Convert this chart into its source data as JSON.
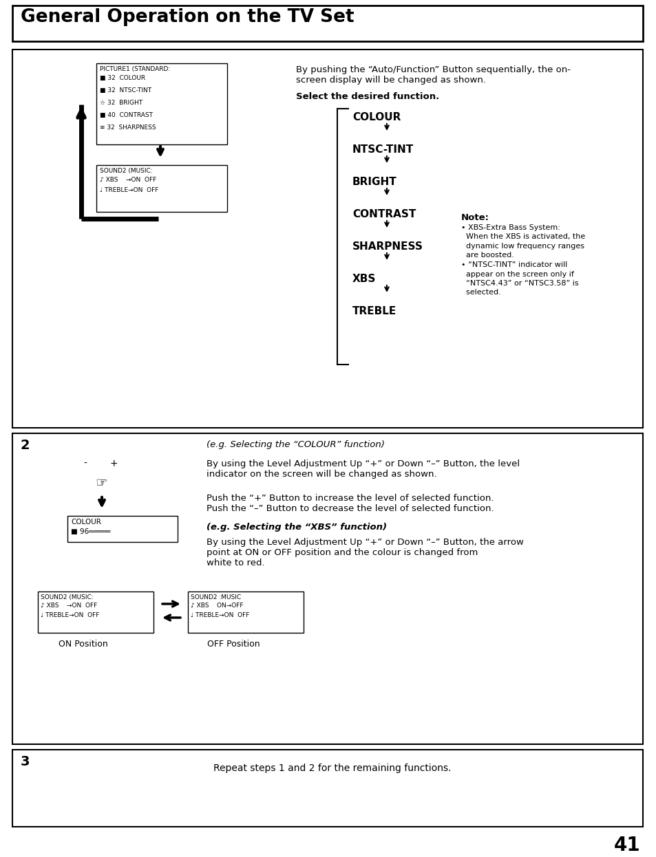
{
  "title": "General Operation on the TV Set",
  "page_number": "41",
  "section1_text1": "By pushing the “Auto/Function” Button sequentially, the on-\nscreen display will be changed as shown.",
  "section1_text2": "Select the desired function.",
  "flow_items": [
    "COLOUR",
    "NTSC-TINT",
    "BRIGHT",
    "CONTRAST",
    "SHARPNESS",
    "XBS",
    "TREBLE"
  ],
  "note_title": "Note:",
  "note_lines": [
    "• XBS-Extra Bass System:",
    "  When the XBS is activated, the",
    "  dynamic low frequency ranges",
    "  are boosted.",
    "• “NTSC-TINT” indicator will",
    "  appear on the screen only if",
    "  “NTSC4.43” or “NTSC3.58” is",
    "  selected."
  ],
  "picture_box_title": "PICTURE1 (STANDARD:",
  "picture_box_lines": [
    "■ 32  COLOUR",
    "■ 32  NTSC-TINT",
    "☆ 32  BRIGHT",
    "■ 40  CONTRAST",
    "≡ 32  SHARPNESS"
  ],
  "sound_box_title": "SOUND2 (MUSIC:",
  "sound_box_lines": [
    "♪ XBS    →ON  OFF",
    "♩ TREBLE→ON  OFF"
  ],
  "sound_box2_title": "SOUND2 :MUSIC",
  "sound_box2_lines": [
    "♪ XBS    ON→OFF",
    "♩ TREBLE→ON  OFF"
  ],
  "section2_text1": "(e.g. Selecting the “COLOUR” function)",
  "section2_text2": "By using the Level Adjustment Up “+” or Down “–” Button, the level\nindicator on the screen will be changed as shown.",
  "section2_text3": "Push the “+” Button to increase the level of selected function.\nPush the “–” Button to decrease the level of selected function.",
  "section2_text4": "(e.g. Selecting the “XBS” function)",
  "section2_text5": "By using the Level Adjustment Up “+” or Down “–” Button, the arrow\npoint at ON or OFF position and the colour is changed from\nwhite to red.",
  "colour_box_title": "COLOUR",
  "colour_box_line": "■ 96═════",
  "on_position": "ON Position",
  "off_position": "OFF Position",
  "section3_desc": "Repeat steps 1 and 2 for the remaining functions.",
  "bg_color": "#ffffff",
  "text_color": "#000000"
}
